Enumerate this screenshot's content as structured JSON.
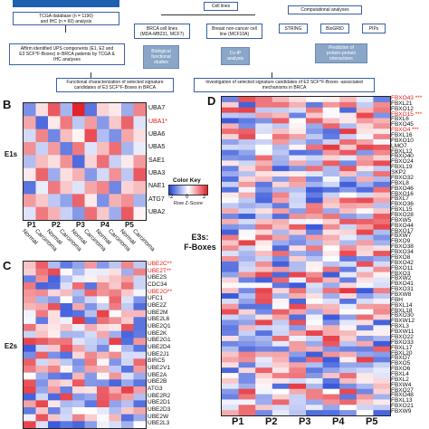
{
  "flow": {
    "tcga": "TCGA database (n = 1190)\nand IHC (n = 60) analysis",
    "affirm": "Affirm identified UPS components (E1, E2 and\nE3 SCF^F-Boxes) in BRCA patients by TCGA &\nIHC analyses",
    "cell_lines": "Cell lines",
    "brca_lines": "BRCA cell lines\n(MDA-MB231, MCF7)",
    "noncancer": "Breast non-cancer cell\nline (MCF10A)",
    "bio": "Biological\nfunctional\nstudies",
    "coip": "Co-IP\nanalysis",
    "functional": "Functional characterization of selected signature\ncandidates of E3 SCF^F-Boxes in BRCA",
    "comp": "Computational analyses",
    "string": "STRING",
    "biogrid": "BioGRID",
    "pips": "PIPs",
    "prediction": "Prediction of\nprotein-protein\ninteractions",
    "investigation": "Investigation of selected signature candidates of E3 SCF^F-Boxes -associated\nmechanisms in BRCA"
  },
  "panelB": {
    "letter": "B",
    "side_label": "E1s",
    "genes": [
      "UBA7",
      "UBA1*",
      "UBA6",
      "UBA5",
      "SAE1",
      "UBA3",
      "NAE1",
      "ATG7",
      "UBA2"
    ],
    "highlight": [
      1
    ],
    "patients": [
      "P1",
      "P2",
      "P3",
      "P4",
      "P5"
    ],
    "conditions": [
      "Normal",
      "Carcinoma",
      "Normal",
      "Carcinoma",
      "Normal",
      "Carcinoma",
      "Normal",
      "Carcinoma",
      "Normal",
      "Carcinoma"
    ],
    "key_title": "Color Key",
    "key_ticks": [
      "-2",
      "0",
      "2"
    ],
    "key_label": "Row Z-Score",
    "values": [
      [
        -1.2,
        0.3,
        1.5,
        -0.8,
        2.0,
        -1.5,
        0.4,
        0.2,
        -0.9,
        1.1
      ],
      [
        0.8,
        -1.6,
        0.2,
        1.2,
        -0.6,
        0.9,
        -1.1,
        0.5,
        1.4,
        -0.3
      ],
      [
        -0.4,
        1.1,
        -1.3,
        0.6,
        0.1,
        1.6,
        -0.7,
        -1.2,
        0.8,
        0.3
      ],
      [
        1.0,
        -0.5,
        0.9,
        -1.4,
        1.2,
        -0.3,
        0.6,
        1.3,
        -0.8,
        -0.2
      ],
      [
        -0.7,
        0.6,
        0.3,
        1.0,
        -1.6,
        0.4,
        1.3,
        -0.5,
        0.2,
        0.9
      ],
      [
        0.2,
        1.4,
        -0.9,
        0.3,
        0.7,
        -1.1,
        -0.4,
        1.0,
        -0.6,
        1.5
      ],
      [
        -1.5,
        -0.2,
        1.2,
        0.5,
        -0.3,
        0.8,
        1.1,
        -1.3,
        0.4,
        0.6
      ],
      [
        0.9,
        0.5,
        -0.6,
        -1.0,
        1.4,
        0.2,
        -1.2,
        0.7,
        1.0,
        -0.8
      ],
      [
        -0.3,
        1.2,
        0.7,
        -0.5,
        -1.1,
        1.3,
        0.5,
        -0.9,
        1.5,
        0.1
      ]
    ]
  },
  "panelC": {
    "letter": "C",
    "side_label": "E2s",
    "genes": [
      "UBE2C**",
      "UBE2T**",
      "UBE2S",
      "CDC34",
      "UBE2O**",
      "UFC1",
      "UBE2Z",
      "UBE2M",
      "UBE2L6",
      "UBE2Q1",
      "UBE2K",
      "UBE2G1",
      "UBE2D4",
      "UBE2J1",
      "BIRC5",
      "UBE2V1",
      "UBE2A",
      "UBE2B",
      "ATG3",
      "UBE2R2",
      "UBE2D1",
      "UBE2D3",
      "UBE2W",
      "UBE2L3"
    ],
    "highlight": [
      0,
      1,
      4
    ]
  },
  "panelD": {
    "letter": "D",
    "side_label": "E3s:\nF-Boxes",
    "genes": [
      "FBXO43 ***",
      "FBXL21",
      "FBXO12",
      "FBXO15 ***",
      "FBXL6",
      "FBXO45",
      "FBXO4 ***",
      "FBXL16",
      "FBXO10",
      "LMO7",
      "FBXL12",
      "FBXO40",
      "FBXO24",
      "FBXL19",
      "SKP2",
      "FBXO32",
      "FBXL8",
      "FBXO46",
      "FBXO16",
      "FBXL7",
      "FBXO36",
      "FBXL15",
      "FBXO28",
      "FBXW5",
      "FBXO44",
      "FBXO17",
      "FBXW7",
      "FBXO9",
      "FBXO38",
      "FBXO34",
      "FBXO8",
      "FBXO42",
      "FBXO11",
      "FBXO3",
      "FBXW2",
      "FBXO41",
      "FBXO31",
      "FBXW8",
      "FBH",
      "FBXL14",
      "FBXL18",
      "FBXO30",
      "FBXW12",
      "FBXL3",
      "FBXW11",
      "FBXO22",
      "FBXO33",
      "FBXL17",
      "FBXL20",
      "FBXO7",
      "FBXO5",
      "FBXO6",
      "FBXL4",
      "FBXL2",
      "FBXW4",
      "FBXO27",
      "FBXO48",
      "FBXL13",
      "FBXO21",
      "FBXW9"
    ],
    "highlight": [
      0,
      3,
      6
    ],
    "patients": [
      "P1",
      "P2",
      "P3",
      "P4",
      "P5"
    ]
  },
  "colors": {
    "blue": "#2346d6",
    "white": "#ffffff",
    "red": "#e3222b",
    "highlight": "#e0201b",
    "flow_blue": "#1f5fb0"
  }
}
